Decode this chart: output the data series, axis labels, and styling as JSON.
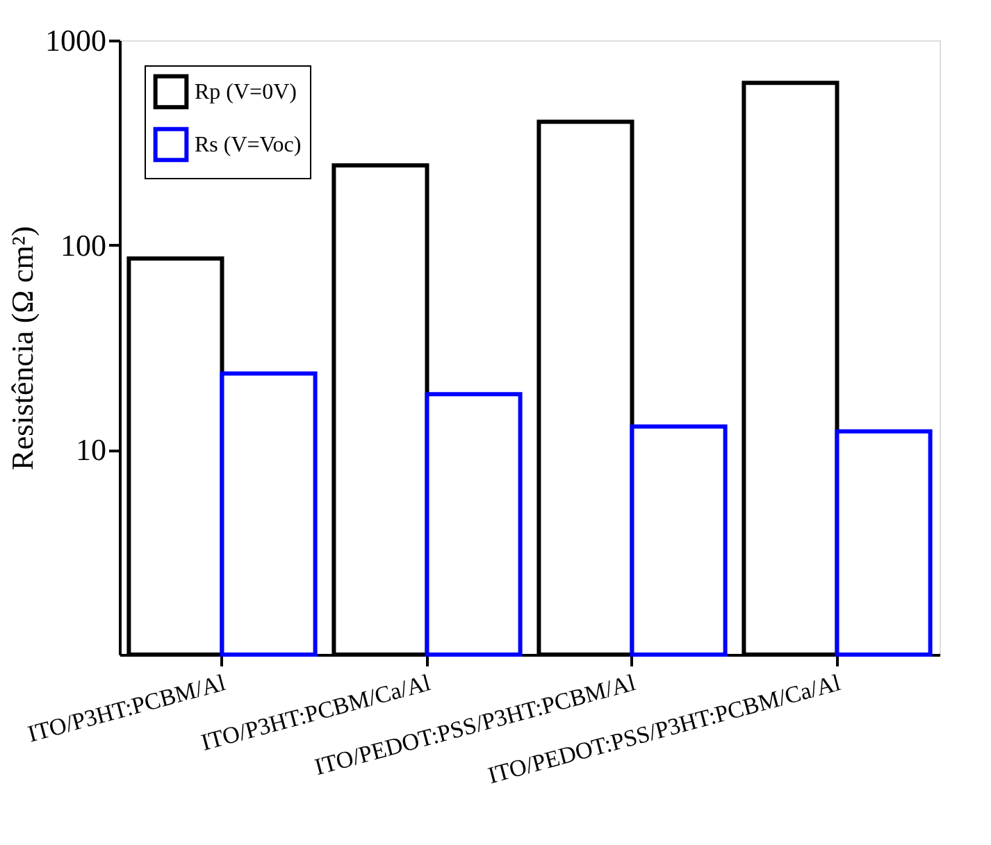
{
  "chart_data": {
    "type": "bar",
    "ylabel": "Resistência (Ω cm²)",
    "categories": [
      "ITO/P3HT:PCBM/Al",
      "ITO/P3HT:PCBM/Ca/Al",
      "ITO/PEDOT:PSS/P3HT:PCBM/Al",
      "ITO/PEDOT:PSS/P3HT:PCBM/Ca/Al"
    ],
    "series": [
      {
        "name": "Rp (V=0V)",
        "color": "#000000",
        "values": [
          86,
          245,
          400,
          620
        ]
      },
      {
        "name": "Rs (V=Voc)",
        "color": "#0000ff",
        "values": [
          23.6,
          18.7,
          13,
          12.3
        ]
      }
    ],
    "log": true,
    "ylim": [
      1,
      1000
    ],
    "yticks": [
      10,
      100,
      1000
    ],
    "grid": false,
    "legend": "top left"
  }
}
